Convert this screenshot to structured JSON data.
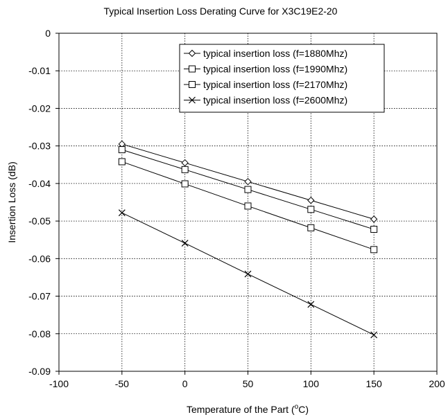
{
  "chart_data": {
    "type": "line",
    "title": "Typical Insertion Loss Derating Curve for X3C19E2-20",
    "xlabel": "Temperature of the Part (°C)",
    "xlabel_parts": {
      "prefix": "Temperature of the Part (",
      "sup": "o",
      "suffix": "C)"
    },
    "ylabel": "Insertion Loss (dB)",
    "xlim": [
      -100,
      200
    ],
    "ylim": [
      -0.09,
      0
    ],
    "x_ticks": [
      "-100",
      "-50",
      "0",
      "50",
      "100",
      "150",
      "200"
    ],
    "y_ticks": [
      "0",
      "-0.01",
      "-0.02",
      "-0.03",
      "-0.04",
      "-0.05",
      "-0.06",
      "-0.07",
      "-0.08",
      "-0.09"
    ],
    "grid": "dotted",
    "legend_position": "top-right",
    "x": [
      -50,
      0,
      50,
      100,
      150
    ],
    "series": [
      {
        "name": "typical insertion loss (f=1880Mhz)",
        "marker": "diamond",
        "values": [
          -0.0295,
          -0.0345,
          -0.0395,
          -0.0445,
          -0.0495
        ]
      },
      {
        "name": "typical insertion loss (f=1990Mhz)",
        "marker": "square",
        "values": [
          -0.031,
          -0.0363,
          -0.0416,
          -0.0469,
          -0.0522
        ]
      },
      {
        "name": "typical insertion loss (f=2170Mhz)",
        "marker": "square",
        "values": [
          -0.0342,
          -0.0401,
          -0.046,
          -0.0518,
          -0.0576
        ]
      },
      {
        "name": "typical insertion loss (f=2600Mhz)",
        "marker": "x",
        "values": [
          -0.0478,
          -0.0559,
          -0.0641,
          -0.0722,
          -0.0803
        ]
      }
    ]
  }
}
